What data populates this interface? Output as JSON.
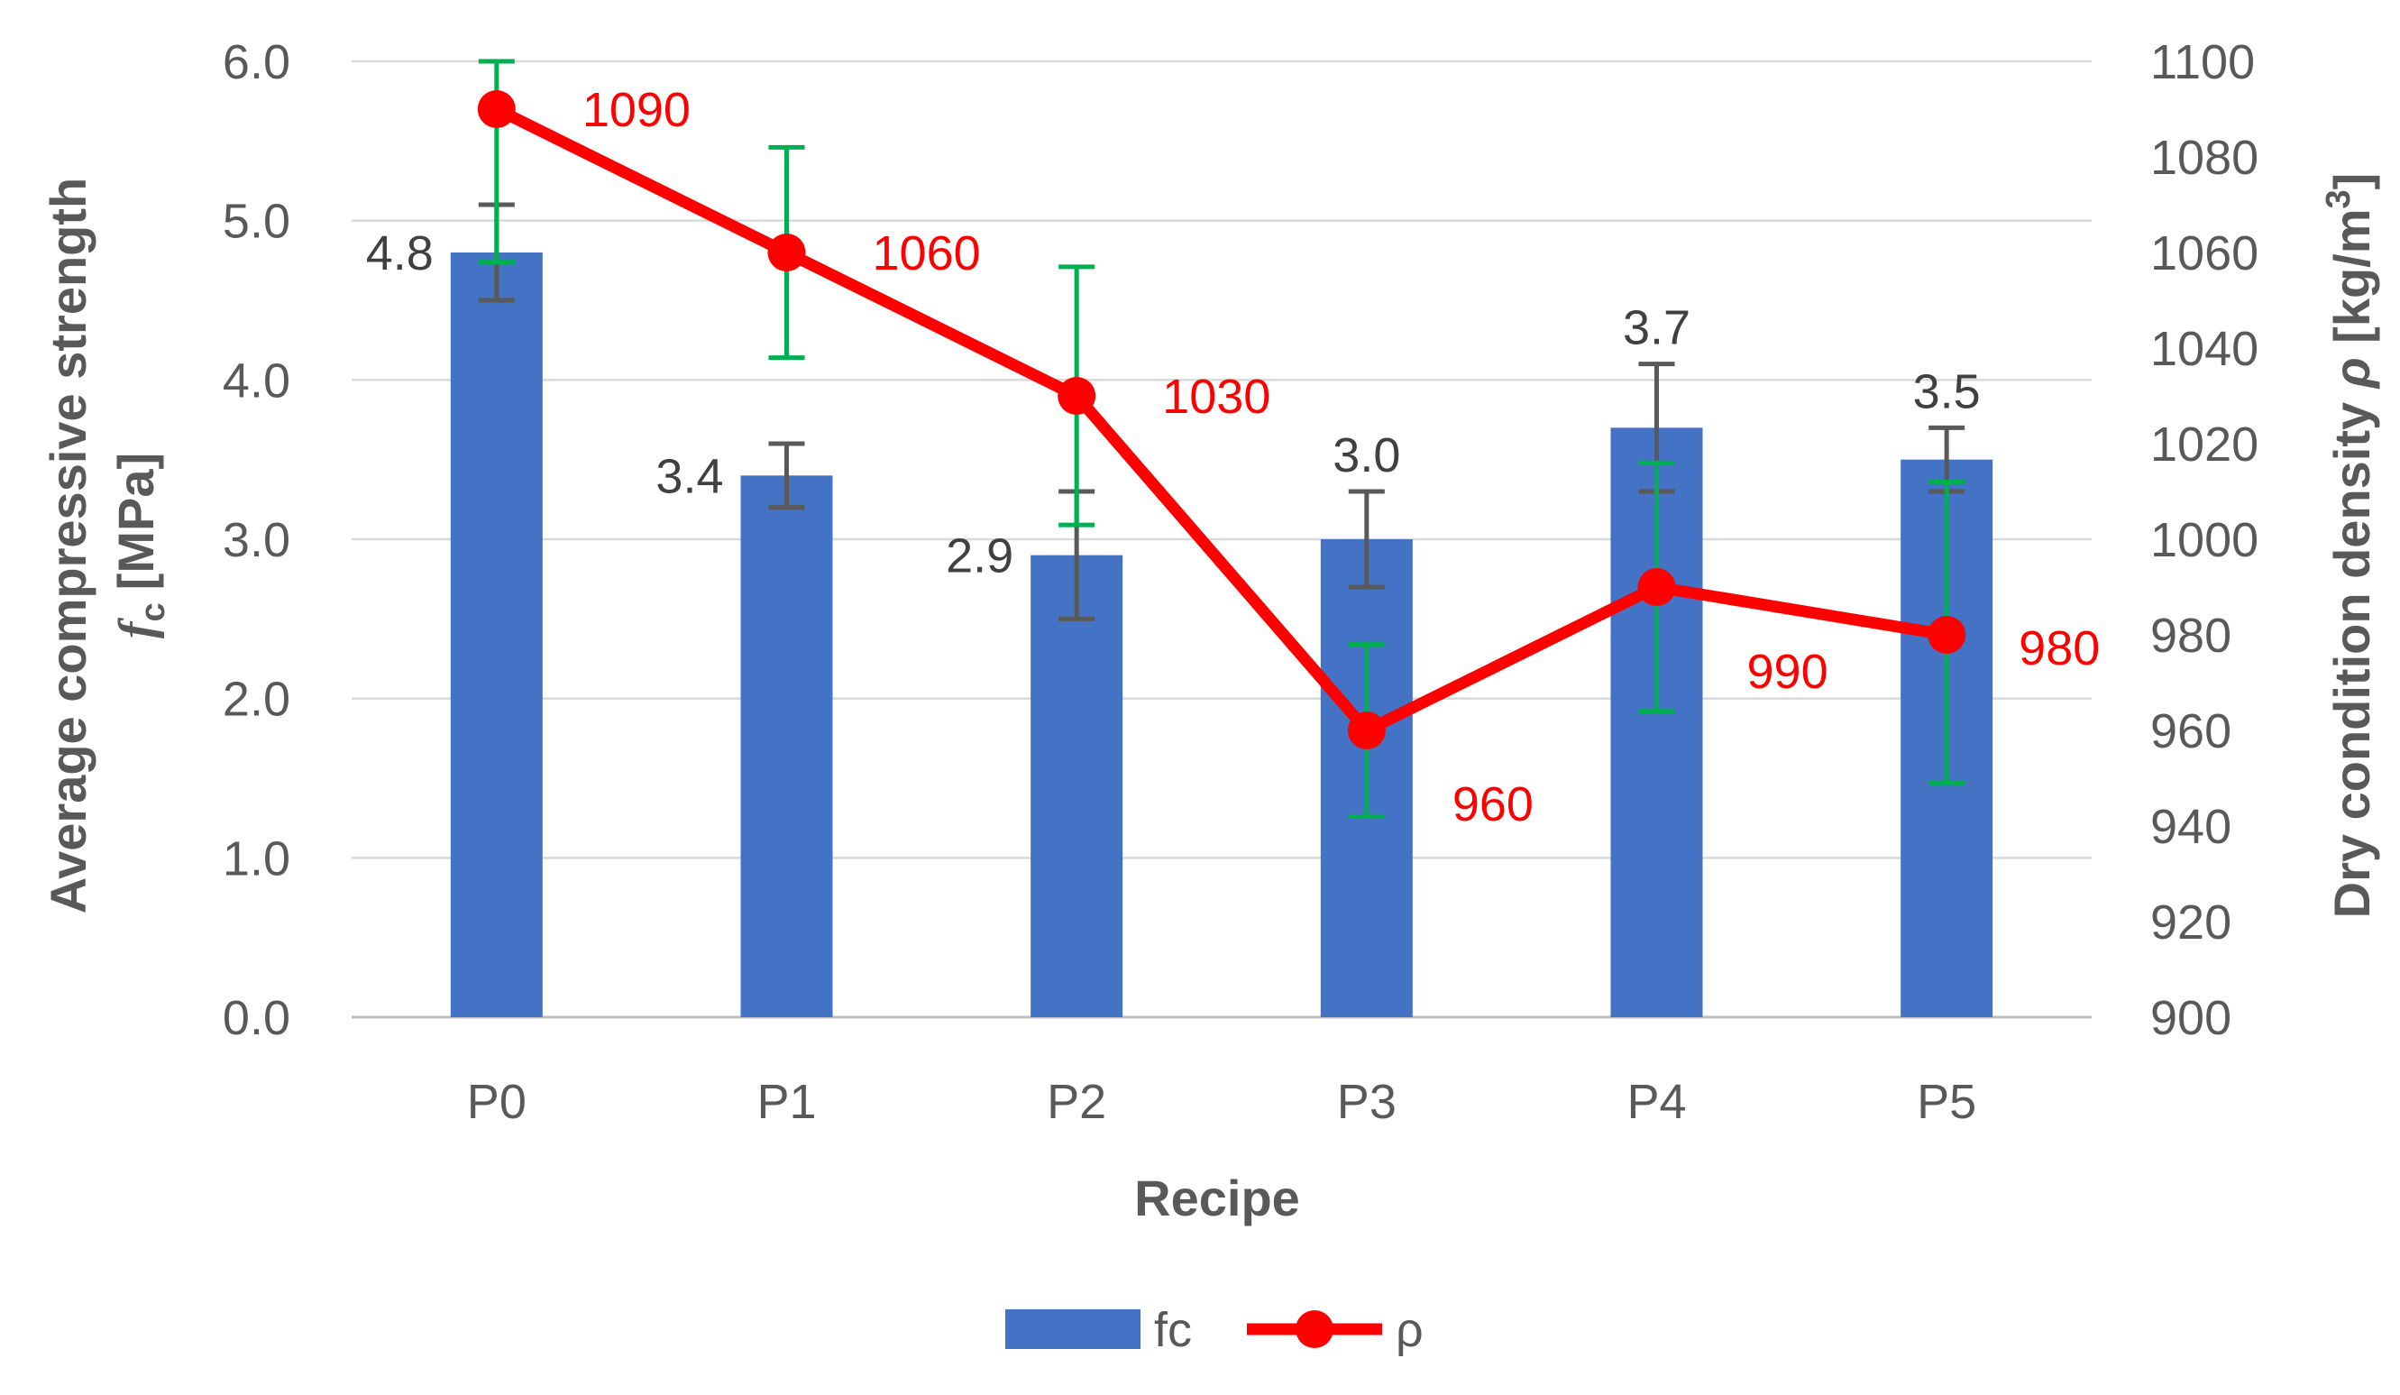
{
  "chart_data": {
    "type": "bar",
    "categories": [
      "P0",
      "P1",
      "P2",
      "P3",
      "P4",
      "P5"
    ],
    "xlabel": "Recipe",
    "ylabel_left": {
      "line1": "Average compressive strength",
      "symbol": "f",
      "subscript": "c",
      "unit": "[MPa]"
    },
    "ylabel_right": {
      "text": "Dry condition density ",
      "symbol": "ρ",
      "unit_open": " [kg/m",
      "unit_sup": "3",
      "unit_close": "]"
    },
    "ylim_left": [
      0,
      6
    ],
    "yticks_left": [
      0,
      1,
      2,
      3,
      4,
      5,
      6
    ],
    "ytick_labels_left": [
      "0.0",
      "1.0",
      "2.0",
      "3.0",
      "4.0",
      "5.0",
      "6.0"
    ],
    "ylim_right": [
      900,
      1100
    ],
    "yticks_right": [
      900,
      920,
      940,
      960,
      980,
      1000,
      1020,
      1040,
      1060,
      1080,
      1100
    ],
    "ytick_labels_right": [
      "900",
      "920",
      "940",
      "960",
      "980",
      "1000",
      "1020",
      "1040",
      "1060",
      "1080",
      "1100"
    ],
    "grid": true,
    "legend_position": "bottom",
    "series": [
      {
        "name": "fc",
        "type": "bar",
        "axis": "left",
        "color": "#4472C4",
        "values": [
          4.8,
          3.4,
          2.9,
          3.0,
          3.7,
          3.5
        ],
        "data_labels": [
          "4.8",
          "3.4",
          "2.9",
          "3.0",
          "3.7",
          "3.5"
        ],
        "error_low": [
          4.5,
          3.2,
          2.5,
          2.7,
          3.3,
          3.3
        ],
        "error_high": [
          5.1,
          3.6,
          3.3,
          3.3,
          4.1,
          3.7
        ],
        "error_color": "#595959"
      },
      {
        "name": "ρ",
        "type": "line",
        "axis": "right",
        "color": "#FF0000",
        "values": [
          1090,
          1060,
          1030,
          960,
          990,
          980
        ],
        "data_labels": [
          "1090",
          "1060",
          "1030",
          "960",
          "990",
          "980"
        ],
        "error_low": [
          1058,
          1038,
          1003,
          942,
          964,
          949
        ],
        "error_high": [
          1100,
          1082,
          1057,
          978,
          1016,
          1012
        ],
        "error_color": "#00B050"
      }
    ]
  }
}
